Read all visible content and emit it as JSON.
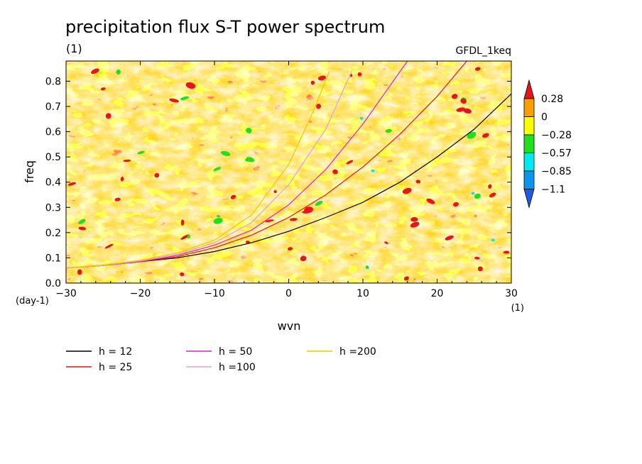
{
  "chart_data": {
    "type": "heatmap",
    "title": "precipitation flux S-T power spectrum",
    "subtitle_left": "(1)",
    "subtitle_right": "GFDL_1keq",
    "xlabel": "wvn",
    "x_unit": "(1)",
    "ylabel": "freq",
    "y_unit": "(day-1)",
    "xlim": [
      -30,
      30
    ],
    "ylim": [
      0,
      0.88
    ],
    "x_ticks": [
      "−30",
      "−20",
      "−10",
      "0",
      "10",
      "20",
      "30"
    ],
    "x_tick_values": [
      -30,
      -20,
      -10,
      0,
      10,
      20,
      30
    ],
    "y_ticks": [
      "0.0",
      "0.1",
      "0.2",
      "0.3",
      "0.4",
      "0.5",
      "0.6",
      "0.7",
      "0.8"
    ],
    "y_tick_values": [
      0,
      0.1,
      0.2,
      0.3,
      0.4,
      0.5,
      0.6,
      0.7,
      0.8
    ],
    "colorbar": {
      "levels": [
        "0.28",
        "0",
        "−0.28",
        "−0.57",
        "−0.85",
        "−1.1"
      ],
      "colors": [
        "#e8141a",
        "#f5a000",
        "#ffff00",
        "#1ee01e",
        "#00e8f0",
        "#0a96f0",
        "#1e5ae6"
      ]
    },
    "series": [
      {
        "name": "h = 12",
        "color": "#000000",
        "x": [
          -30,
          -25,
          -20,
          -15,
          -10,
          -5,
          0,
          5,
          10,
          15,
          20,
          25,
          30
        ],
        "y": [
          0.06,
          0.07,
          0.085,
          0.1,
          0.125,
          0.16,
          0.205,
          0.26,
          0.32,
          0.4,
          0.5,
          0.61,
          0.75
        ]
      },
      {
        "name": "h = 25",
        "color": "#e8141a",
        "x": [
          -30,
          -25,
          -20,
          -15,
          -10,
          -5,
          0,
          5,
          10,
          15,
          20,
          24
        ],
        "y": [
          0.06,
          0.07,
          0.085,
          0.105,
          0.14,
          0.19,
          0.26,
          0.35,
          0.46,
          0.59,
          0.74,
          0.88
        ]
      },
      {
        "name": "h = 50",
        "color": "#e61ec8",
        "x": [
          -30,
          -25,
          -20,
          -15,
          -10,
          -5,
          0,
          5,
          10,
          16
        ],
        "y": [
          0.06,
          0.07,
          0.085,
          0.11,
          0.15,
          0.21,
          0.31,
          0.45,
          0.63,
          0.88
        ]
      },
      {
        "name": "h =100",
        "color": "#dca0dc",
        "x": [
          -30,
          -25,
          -20,
          -15,
          -10,
          -5,
          0,
          5,
          8.5
        ],
        "y": [
          0.06,
          0.07,
          0.088,
          0.115,
          0.16,
          0.24,
          0.39,
          0.61,
          0.84
        ]
      },
      {
        "name": "h =200",
        "color": "#f0c800",
        "x": [
          -30,
          -25,
          -20,
          -15,
          -10,
          -5,
          0,
          3,
          5.5
        ],
        "y": [
          0.06,
          0.072,
          0.09,
          0.12,
          0.17,
          0.27,
          0.47,
          0.66,
          0.84
        ]
      }
    ]
  }
}
